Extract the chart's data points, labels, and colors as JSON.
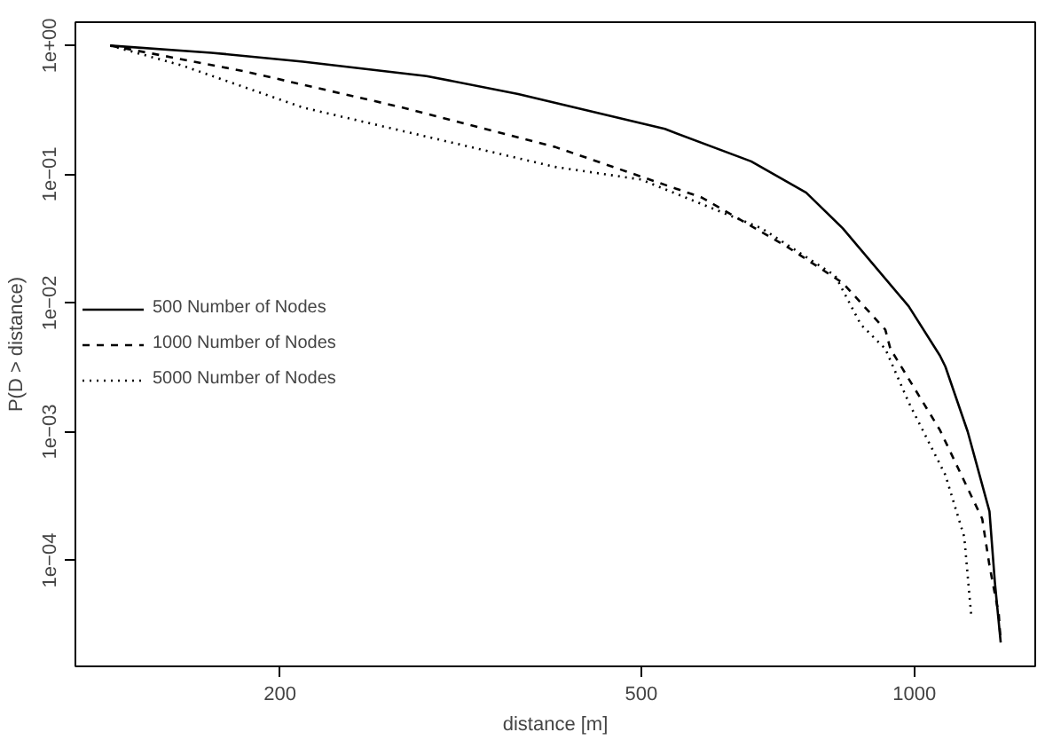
{
  "chart_data": {
    "type": "line",
    "xlabel": "distance [m]",
    "ylabel": "P(D > distance)",
    "log": "xy",
    "xlim": [
      119,
      1359
    ],
    "ylim": [
      1.5e-05,
      1.52
    ],
    "xticks": [
      200,
      500,
      1000
    ],
    "yticks": [
      {
        "value": 1,
        "label": "1e+00"
      },
      {
        "value": 0.1,
        "label": "1e−01"
      },
      {
        "value": 0.01,
        "label": "1e−02"
      },
      {
        "value": 0.001,
        "label": "1e−03"
      },
      {
        "value": 0.0001,
        "label": "1e−04"
      }
    ],
    "grid": false,
    "legend": "left",
    "series": [
      {
        "name": "500 Number of Nodes",
        "color": "#000000",
        "line_style": "solid",
        "x": [
          130,
          168,
          212,
          290,
          366,
          531,
          661,
          760,
          834,
          986,
          1067,
          1082,
          1145,
          1210,
          1227,
          1245
        ],
        "values": [
          1,
          0.88,
          0.75,
          0.58,
          0.42,
          0.225,
          0.126,
          0.072,
          0.038,
          0.0094,
          0.0039,
          0.0032,
          0.001,
          0.00024,
          6.6e-05,
          2.3e-05
        ]
      },
      {
        "name": "1000 Number of Nodes",
        "color": "#000000",
        "line_style": "dashed",
        "x": [
          130,
          182,
          273,
          402,
          583,
          726,
          834,
          929,
          941,
          1067,
          1188,
          1210,
          1239,
          1245
        ],
        "values": [
          1,
          0.635,
          0.33,
          0.163,
          0.066,
          0.027,
          0.0143,
          0.0062,
          0.0044,
          0.00103,
          0.00021,
          9.1e-05,
          3.8e-05,
          2.3e-05
        ]
      },
      {
        "name": "5000 Number of Nodes",
        "color": "#000000",
        "line_style": "dotted",
        "x": [
          130,
          156,
          212,
          402,
          500,
          679,
          818,
          873,
          929,
          986,
          1082,
          1135,
          1155
        ],
        "values": [
          1,
          0.7,
          0.33,
          0.114,
          0.091,
          0.038,
          0.0163,
          0.0068,
          0.0044,
          0.00168,
          0.00046,
          0.000152,
          3.8e-05
        ]
      }
    ]
  }
}
